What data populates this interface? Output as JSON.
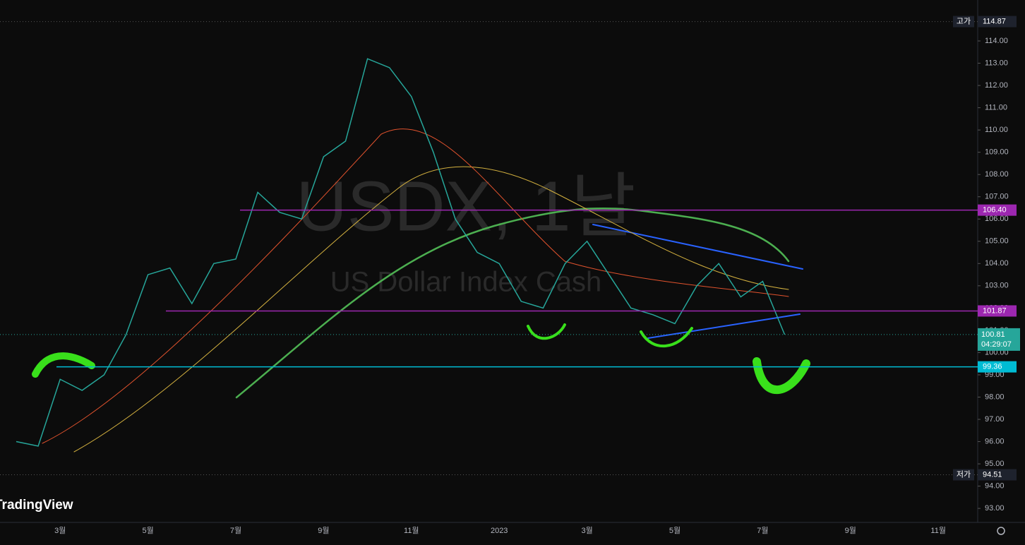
{
  "chart_data": {
    "type": "line",
    "watermark": {
      "symbol": "USDX, 1날",
      "name": "US Dollar Index Cash"
    },
    "brand": "TradingView",
    "categories": [
      null,
      null,
      "3월",
      null,
      null,
      null,
      "5월",
      null,
      null,
      null,
      "7월",
      null,
      null,
      null,
      "9월",
      null,
      null,
      null,
      "11월",
      null,
      null,
      null,
      "2023",
      null,
      null,
      null,
      "3월",
      null,
      null,
      null,
      "5월",
      null,
      null,
      null,
      "7월",
      null,
      null,
      null,
      "9월",
      null,
      null,
      null,
      "11월"
    ],
    "values": [
      96.0,
      95.8,
      98.8,
      98.3,
      99.0,
      100.8,
      103.5,
      103.8,
      102.2,
      104.0,
      104.2,
      107.2,
      106.3,
      106.0,
      108.8,
      109.5,
      113.2,
      112.8,
      111.5,
      109.0,
      106.0,
      104.5,
      104.0,
      102.3,
      102.0,
      104.0,
      105.0,
      103.5,
      102.0,
      101.7,
      101.3,
      103.0,
      104.0,
      102.5,
      103.2,
      100.81,
      null,
      null,
      null,
      null,
      null,
      null,
      null
    ],
    "color": "#26a69a",
    "ylim": [
      92.37,
      115.84
    ],
    "yticks": [
      {
        "value": 93,
        "label": "93.00"
      },
      {
        "value": 94,
        "label": "94.00"
      },
      {
        "value": 95,
        "label": "95.00"
      },
      {
        "value": 96,
        "label": "96.00"
      },
      {
        "value": 97,
        "label": "97.00"
      },
      {
        "value": 98,
        "label": "98.00"
      },
      {
        "value": 99,
        "label": "99.00"
      },
      {
        "value": 100,
        "label": "100.00"
      },
      {
        "value": 101,
        "label": "101.00"
      },
      {
        "value": 102,
        "label": "102.00"
      },
      {
        "value": 103,
        "label": "103.00"
      },
      {
        "value": 104,
        "label": "104.00"
      },
      {
        "value": 105,
        "label": "105.00"
      },
      {
        "value": 106,
        "label": "106.00"
      },
      {
        "value": 107,
        "label": "107.00"
      },
      {
        "value": 108,
        "label": "108.00"
      },
      {
        "value": 109,
        "label": "109.00"
      },
      {
        "value": 110,
        "label": "110.00"
      },
      {
        "value": 111,
        "label": "111.00"
      },
      {
        "value": 112,
        "label": "112.00"
      },
      {
        "value": 113,
        "label": "113.00"
      },
      {
        "value": 114,
        "label": "114.00"
      }
    ],
    "levels": [
      {
        "value": 106.4,
        "label": "106.40",
        "color": "#9c27b0"
      },
      {
        "value": 101.87,
        "label": "101.87",
        "color": "#9c27b0"
      },
      {
        "value": 99.36,
        "label": "99.36",
        "color": "#00bcd4"
      }
    ],
    "high": {
      "tag": "고가",
      "value": 114.87,
      "label": "114.87"
    },
    "low": {
      "tag": "저가",
      "value": 94.51,
      "label": "94.51"
    },
    "last": {
      "value": 100.81,
      "label": "100.81",
      "countdown": "04:29:07"
    }
  }
}
